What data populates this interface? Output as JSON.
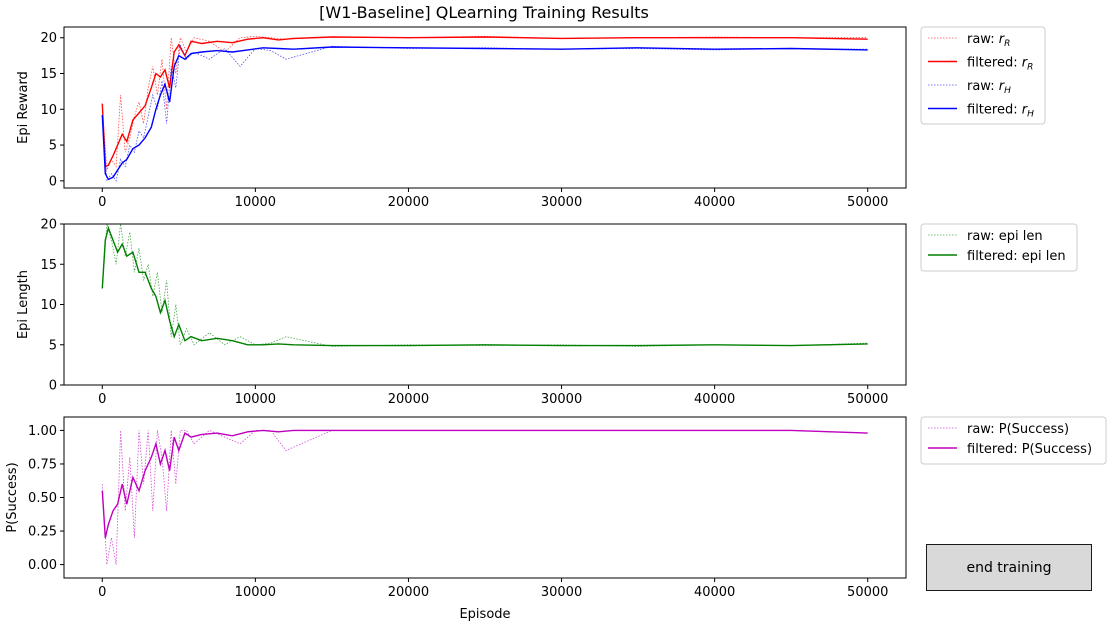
{
  "figure": {
    "title": "[W1-Baseline] QLearning Training Results"
  },
  "button": {
    "label": "end training"
  },
  "chart_data": [
    {
      "type": "line",
      "ylabel": "Epi Reward",
      "xlim": [
        -2500,
        52500
      ],
      "ylim": [
        -1,
        21.5
      ],
      "xticks": [
        0,
        10000,
        20000,
        30000,
        40000,
        50000
      ],
      "yticks": [
        0,
        5,
        10,
        15,
        20
      ],
      "ytick_labels": [
        "0",
        "5",
        "10",
        "15",
        "20"
      ],
      "legend_position": "outside-right-top",
      "legend": [
        {
          "label": "raw: ",
          "math": "r",
          "sub": "R",
          "color": "#ff0000",
          "style": "dotted"
        },
        {
          "label": "filtered: ",
          "math": "r",
          "sub": "R",
          "color": "#ff0000",
          "style": "solid"
        },
        {
          "label": "raw: ",
          "math": "r",
          "sub": "H",
          "color": "#0000ff",
          "style": "dotted"
        },
        {
          "label": "filtered: ",
          "math": "r",
          "sub": "H",
          "color": "#0000ff",
          "style": "solid"
        }
      ],
      "series": [
        {
          "name": "raw: r_R",
          "color": "#ff0000",
          "style": "dotted",
          "x": [
            0,
            300,
            600,
            900,
            1200,
            1500,
            1800,
            2100,
            2400,
            2700,
            3000,
            3300,
            3600,
            3900,
            4200,
            4500,
            4800,
            5100,
            5500,
            6000,
            7000,
            8000,
            9000,
            10000,
            11000,
            12000,
            15000,
            20000,
            25000,
            30000,
            35000,
            40000,
            45000,
            50000
          ],
          "values": [
            10.5,
            1.5,
            3,
            2,
            12,
            4,
            6,
            9,
            11,
            8,
            13,
            16,
            12,
            17,
            10,
            20,
            15,
            20,
            18,
            20,
            19.5,
            18,
            20,
            20.2,
            20,
            19.8,
            20.1,
            20,
            20.2,
            19.9,
            20,
            20.1,
            20,
            20
          ]
        },
        {
          "name": "filtered: r_R",
          "color": "#ff0000",
          "style": "solid",
          "x": [
            0,
            200,
            400,
            700,
            1000,
            1300,
            1600,
            2000,
            2400,
            2800,
            3200,
            3500,
            3800,
            4100,
            4400,
            4700,
            5000,
            5400,
            5800,
            6500,
            7500,
            8500,
            9500,
            10500,
            11500,
            12500,
            15000,
            20000,
            25000,
            30000,
            35000,
            40000,
            45000,
            50000
          ],
          "values": [
            10.8,
            2,
            2.2,
            3.5,
            5,
            6.5,
            5.5,
            8.5,
            9.5,
            10.5,
            13,
            15,
            14.5,
            15.5,
            13,
            18,
            19,
            17.5,
            19.5,
            19.2,
            19.5,
            19.3,
            19.8,
            20,
            19.7,
            19.9,
            20.1,
            20,
            20.1,
            19.9,
            20,
            20,
            20,
            19.8
          ]
        },
        {
          "name": "raw: r_H",
          "color": "#0000ff",
          "style": "dotted",
          "x": [
            0,
            300,
            600,
            900,
            1200,
            1500,
            1800,
            2100,
            2400,
            2700,
            3000,
            3300,
            3600,
            3900,
            4200,
            4500,
            4800,
            5100,
            5500,
            6000,
            7000,
            8000,
            9000,
            10000,
            11000,
            12000,
            15000,
            20000,
            25000,
            30000,
            35000,
            40000,
            45000,
            50000
          ],
          "values": [
            9,
            0,
            1,
            0,
            3,
            2,
            5,
            4,
            7,
            6,
            9,
            12,
            10,
            14,
            8,
            16,
            13,
            19,
            17,
            18,
            17,
            18.5,
            16,
            18.5,
            18.2,
            17,
            18.8,
            18.5,
            18.6,
            18.4,
            18.5,
            18.3,
            18.5,
            18.4
          ]
        },
        {
          "name": "filtered: r_H",
          "color": "#0000ff",
          "style": "solid",
          "x": [
            0,
            200,
            400,
            700,
            1000,
            1300,
            1600,
            2000,
            2400,
            2800,
            3200,
            3500,
            3800,
            4100,
            4400,
            4700,
            5000,
            5400,
            5800,
            6500,
            7500,
            8500,
            9500,
            10500,
            11500,
            12500,
            15000,
            20000,
            25000,
            30000,
            35000,
            40000,
            45000,
            50000
          ],
          "values": [
            9.2,
            1,
            0.2,
            0.5,
            1.5,
            2.5,
            3,
            4.5,
            5,
            6,
            7.5,
            10,
            12,
            13.5,
            11,
            16,
            17.5,
            17,
            17.8,
            18,
            18.2,
            18,
            18.3,
            18.6,
            18.5,
            18.4,
            18.7,
            18.6,
            18.5,
            18.4,
            18.6,
            18.4,
            18.5,
            18.3
          ]
        }
      ]
    },
    {
      "type": "line",
      "ylabel": "Epi Length",
      "xlim": [
        -2500,
        52500
      ],
      "ylim": [
        0,
        20
      ],
      "xticks": [
        0,
        10000,
        20000,
        30000,
        40000,
        50000
      ],
      "yticks": [
        0,
        5,
        10,
        15,
        20
      ],
      "ytick_labels": [
        "0",
        "5",
        "10",
        "15",
        "20"
      ],
      "legend_position": "outside-right-top",
      "legend": [
        {
          "label": "raw: epi len",
          "color": "#008000",
          "style": "dotted"
        },
        {
          "label": "filtered: epi len",
          "color": "#008000",
          "style": "solid"
        }
      ],
      "series": [
        {
          "name": "raw: epi len",
          "color": "#008000",
          "style": "dotted",
          "x": [
            0,
            300,
            600,
            900,
            1200,
            1500,
            1800,
            2100,
            2400,
            2700,
            3000,
            3300,
            3600,
            3900,
            4200,
            4500,
            4800,
            5100,
            5500,
            6000,
            7000,
            8000,
            9000,
            10000,
            11000,
            12000,
            15000,
            20000,
            25000,
            30000,
            35000,
            40000,
            45000,
            50000
          ],
          "values": [
            12,
            20,
            18,
            15,
            20,
            16,
            19,
            14,
            17,
            13,
            15,
            11,
            14,
            9,
            13,
            6,
            10,
            5,
            7,
            5,
            6.5,
            5,
            6,
            5,
            5.2,
            6,
            4.8,
            5,
            4.9,
            5,
            4.8,
            5,
            4.9,
            5.2
          ]
        },
        {
          "name": "filtered: epi len",
          "color": "#008000",
          "style": "solid",
          "x": [
            0,
            200,
            400,
            700,
            1000,
            1300,
            1600,
            2000,
            2400,
            2800,
            3200,
            3500,
            3800,
            4100,
            4400,
            4700,
            5000,
            5400,
            5800,
            6500,
            7500,
            8500,
            9500,
            10500,
            11500,
            12500,
            15000,
            20000,
            25000,
            30000,
            35000,
            40000,
            45000,
            50000
          ],
          "values": [
            12,
            18,
            19.5,
            18,
            16.5,
            17.5,
            16,
            16.5,
            14,
            14,
            12,
            11,
            9,
            10.5,
            8,
            6,
            7.5,
            5.5,
            6,
            5.5,
            5.8,
            5.5,
            5,
            5,
            5.1,
            5,
            4.9,
            4.9,
            5,
            4.9,
            4.9,
            5,
            4.9,
            5.1
          ]
        }
      ]
    },
    {
      "type": "line",
      "ylabel": "P(Success)",
      "xlabel": "Episode",
      "xlim": [
        -2500,
        52500
      ],
      "ylim": [
        -0.1,
        1.1
      ],
      "xticks": [
        0,
        10000,
        20000,
        30000,
        40000,
        50000
      ],
      "yticks": [
        0,
        0.25,
        0.5,
        0.75,
        1.0
      ],
      "ytick_labels": [
        "0.00",
        "0.25",
        "0.50",
        "0.75",
        "1.00"
      ],
      "legend_position": "outside-right-top",
      "legend": [
        {
          "label": "raw: P(Success)",
          "color": "#bf00bf",
          "style": "dotted"
        },
        {
          "label": "filtered: P(Success)",
          "color": "#bf00bf",
          "style": "solid"
        }
      ],
      "series": [
        {
          "name": "raw: P(Success)",
          "color": "#bf00bf",
          "style": "dotted",
          "x": [
            0,
            300,
            600,
            900,
            1200,
            1500,
            1800,
            2100,
            2400,
            2700,
            3000,
            3300,
            3600,
            3900,
            4200,
            4500,
            4800,
            5100,
            5500,
            6000,
            7000,
            8000,
            9000,
            10000,
            11000,
            12000,
            15000,
            20000,
            25000,
            30000,
            35000,
            40000,
            45000,
            50000
          ],
          "values": [
            0.6,
            0,
            0.2,
            0,
            1,
            0.4,
            0.8,
            0.2,
            1,
            0.6,
            1,
            0.4,
            1,
            0.8,
            0.4,
            1,
            0.6,
            1,
            1,
            0.9,
            1,
            0.95,
            0.9,
            1,
            1,
            0.85,
            1,
            1,
            1,
            1,
            1,
            1,
            1,
            0.98
          ]
        },
        {
          "name": "filtered: P(Success)",
          "color": "#bf00bf",
          "style": "solid",
          "x": [
            0,
            200,
            400,
            700,
            1000,
            1300,
            1600,
            2000,
            2400,
            2800,
            3200,
            3500,
            3800,
            4100,
            4400,
            4700,
            5000,
            5400,
            5800,
            6500,
            7500,
            8500,
            9500,
            10500,
            11500,
            12500,
            15000,
            20000,
            25000,
            30000,
            35000,
            40000,
            45000,
            50000
          ],
          "values": [
            0.55,
            0.2,
            0.3,
            0.4,
            0.45,
            0.6,
            0.45,
            0.65,
            0.55,
            0.7,
            0.8,
            0.9,
            0.75,
            0.85,
            0.7,
            0.95,
            0.85,
            0.98,
            0.95,
            0.97,
            0.98,
            0.96,
            0.99,
            1,
            0.99,
            1,
            1,
            1,
            1,
            1,
            1,
            1,
            1,
            0.98
          ]
        }
      ]
    }
  ]
}
